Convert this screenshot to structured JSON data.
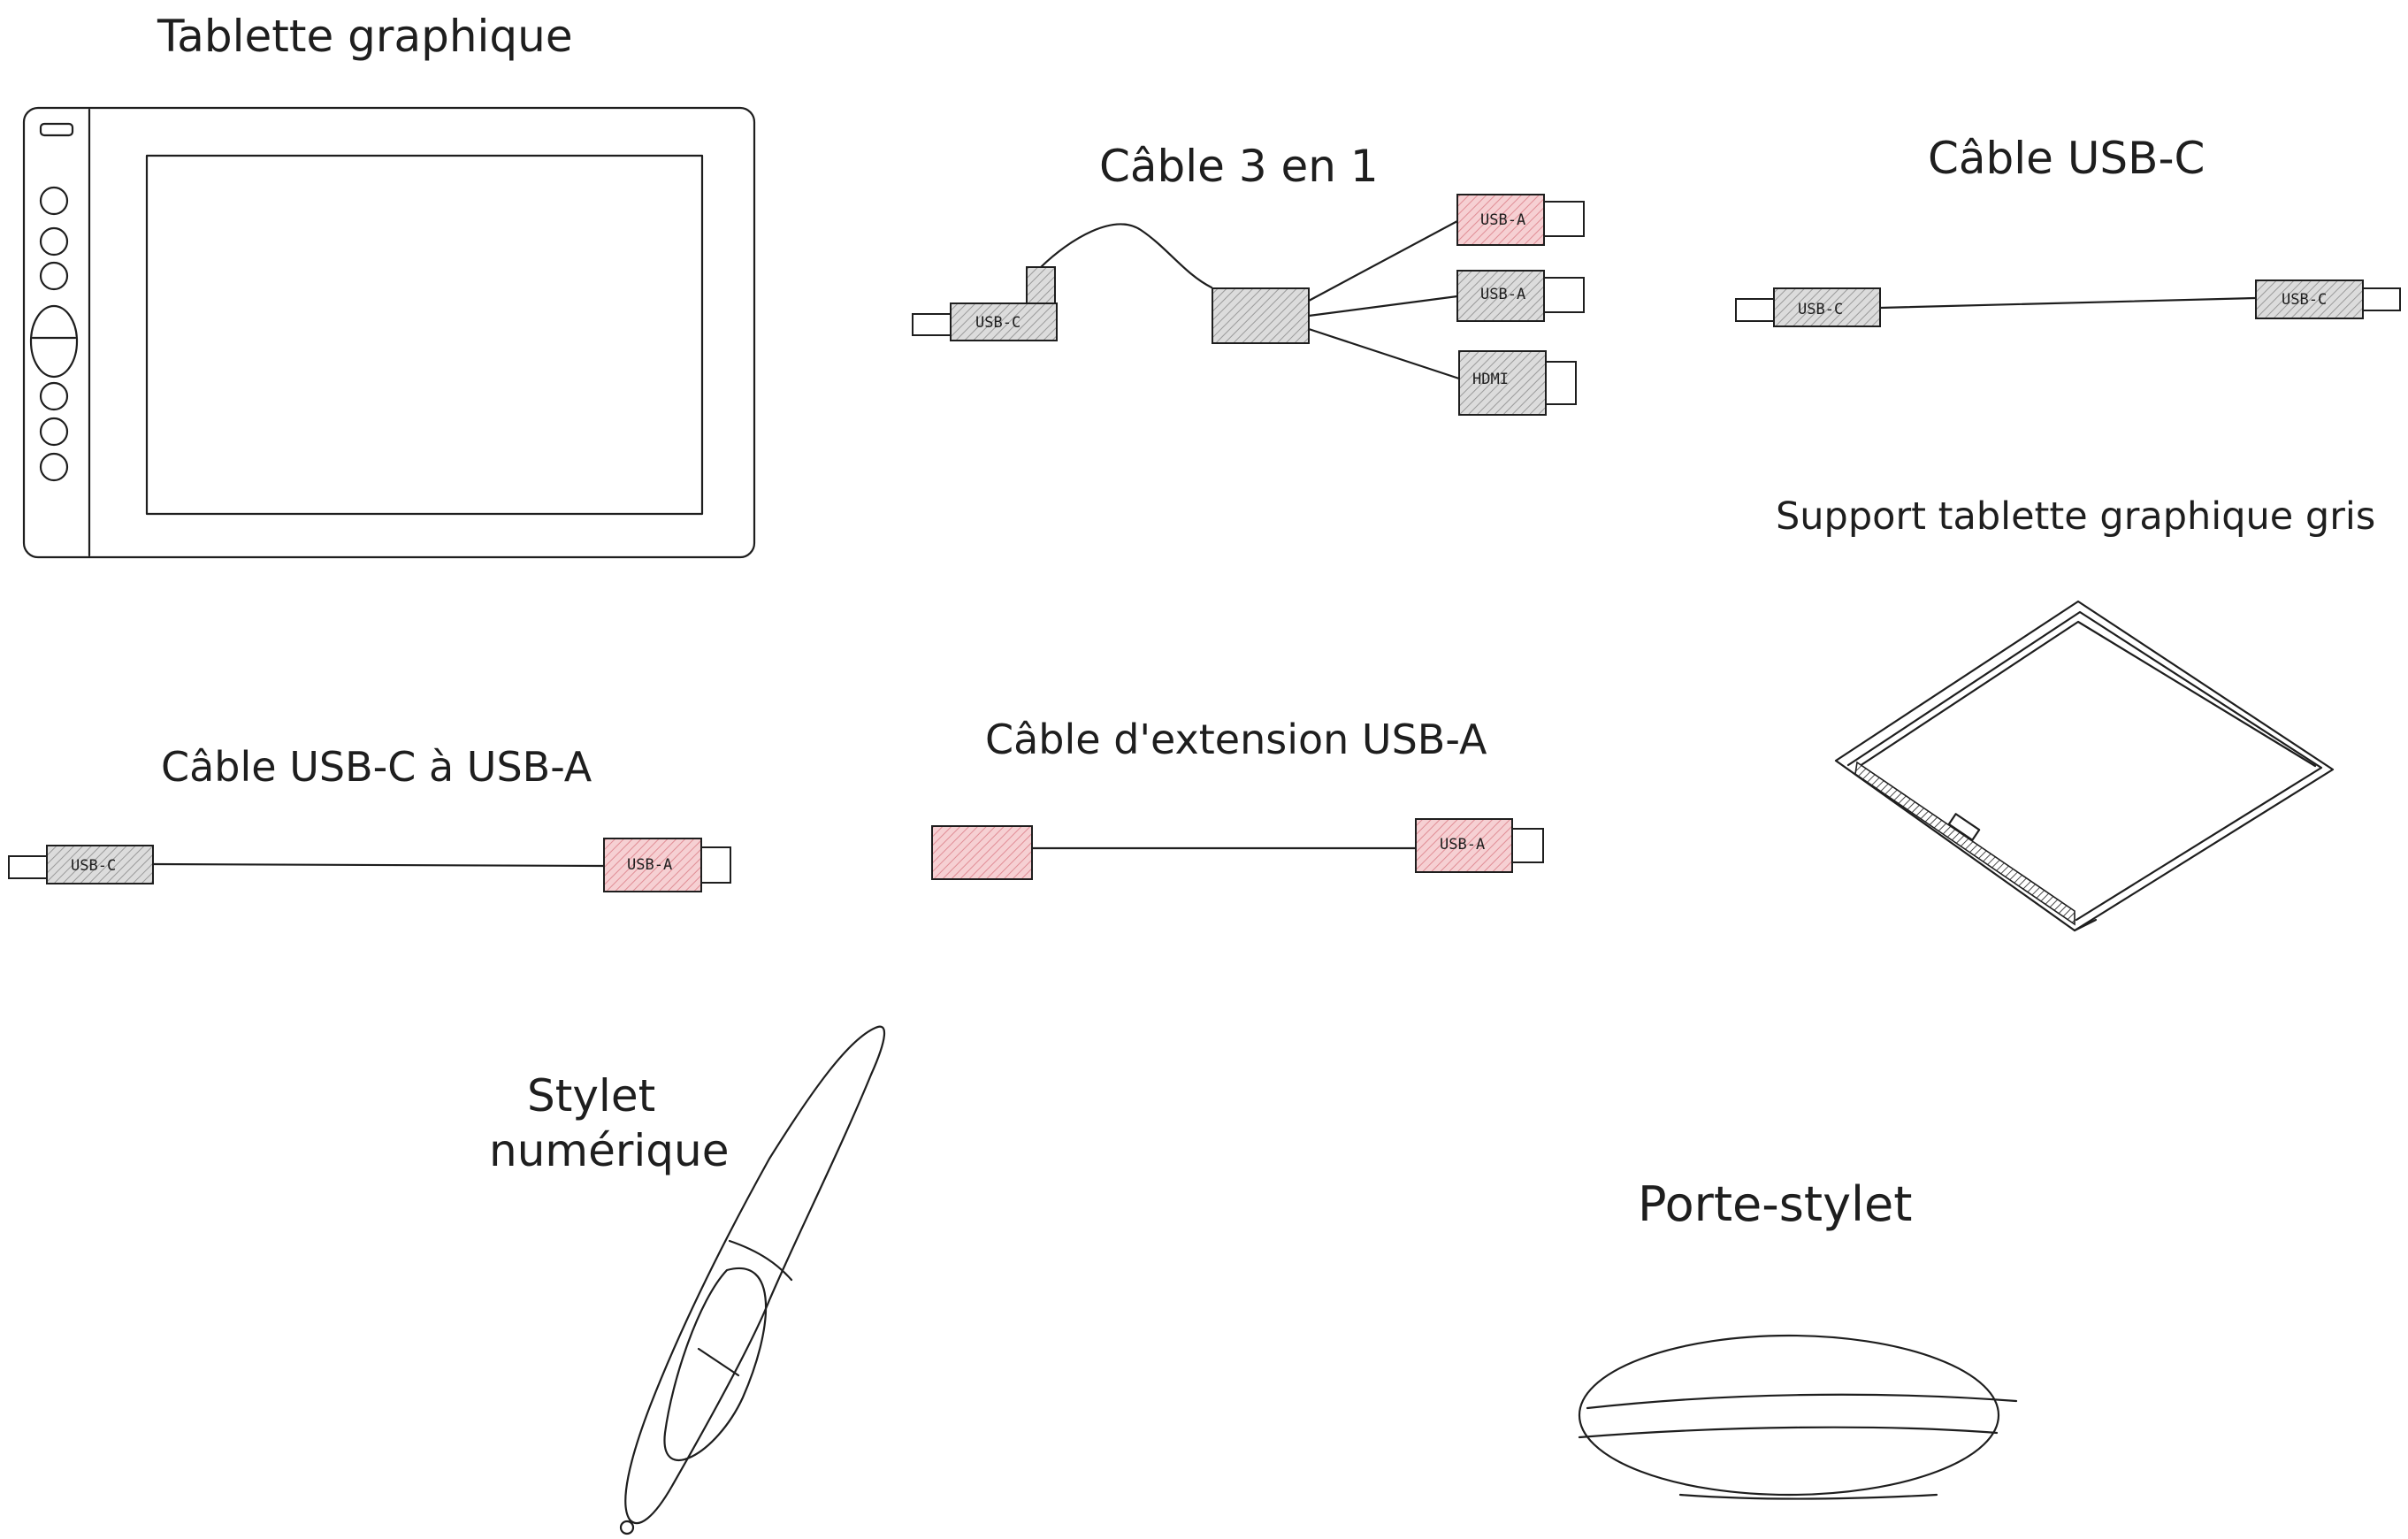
{
  "labels": {
    "tablet": "Tablette graphique",
    "cable3in1": "Câble 3 en 1",
    "cableUsbc": "Câble USB-C",
    "stand": "Support tablette graphique gris",
    "cableUsbcUsba": "Câble USB-C à USB-A",
    "extension": "Câble d'extension USB-A",
    "stylus_line1": "Stylet",
    "stylus_line2": "numérique",
    "penHolder": "Porte-stylet"
  },
  "connectors": {
    "usbc": "USB-C",
    "usba": "USB-A",
    "hdmi": "HDMI"
  },
  "colors": {
    "stroke": "#1e1e1e",
    "gray_fill": "#c8c8c8",
    "pink_fill": "#f2b8bd"
  }
}
